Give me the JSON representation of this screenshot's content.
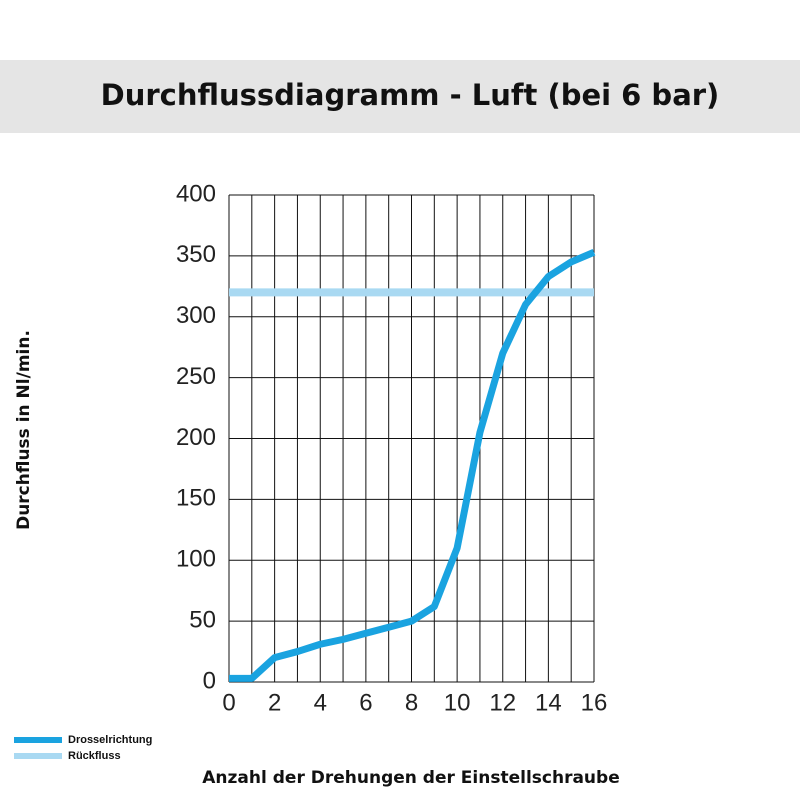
{
  "chart_data": {
    "type": "line",
    "title": "Durchflussdiagramm - Luft (bei 6 bar)",
    "y_label": "Durchfluss in Nl/min.",
    "x_label": "Anzahl der Drehungen der Einstellschraube",
    "x": [
      0,
      1,
      2,
      3,
      4,
      5,
      6,
      7,
      8,
      9,
      10,
      11,
      12,
      13,
      14,
      15,
      16
    ],
    "series": [
      {
        "name": "Drosselrichtung",
        "color": "#1aa3e0",
        "values": [
          3,
          3,
          20,
          25,
          31,
          35,
          40,
          45,
          50,
          62,
          110,
          205,
          270,
          310,
          333,
          345,
          353
        ]
      },
      {
        "name": "Rückfluss",
        "color": "#a9d9f2",
        "values": [
          320,
          320,
          320,
          320,
          320,
          320,
          320,
          320,
          320,
          320,
          320,
          320,
          320,
          320,
          320,
          320,
          320
        ]
      }
    ],
    "xlim": [
      0,
      16
    ],
    "xticks": [
      0,
      2,
      4,
      6,
      8,
      10,
      12,
      14,
      16
    ],
    "ylim": [
      0,
      400
    ],
    "yticks": [
      0,
      50,
      100,
      150,
      200,
      250,
      300,
      350,
      400
    ],
    "grid": true
  }
}
